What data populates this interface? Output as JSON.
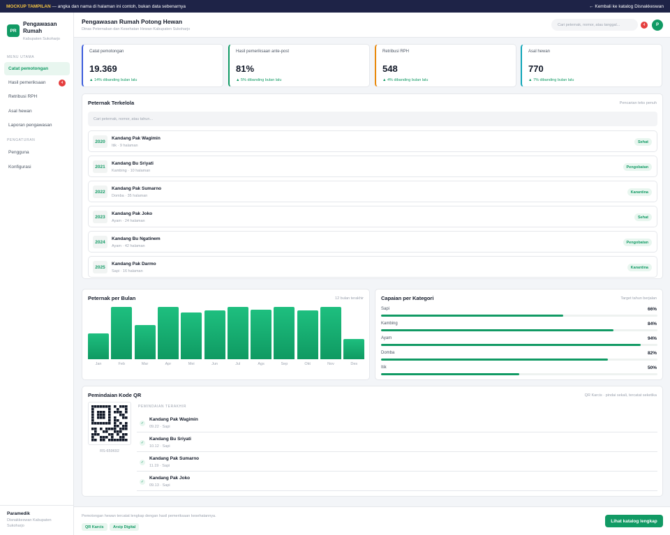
{
  "banner": {
    "tag": "MOCKUP TAMPILAN",
    "text": "— angka dan nama di halaman ini contoh, bukan data sebenarnya",
    "back_link": "← Kembali ke katalog Disnakkeswan"
  },
  "brand": {
    "logo": "PR",
    "title": "Pengawasan Rumah",
    "subtitle": "Kabupaten Sukoharjo"
  },
  "sidebar": {
    "section_main": "MENU UTAMA",
    "section_settings": "PENGATURAN",
    "items": [
      {
        "label": "Catat pemotongan"
      },
      {
        "label": "Hasil pemeriksaan",
        "badge": "4"
      },
      {
        "label": "Retribusi RPH"
      },
      {
        "label": "Asal hewan"
      },
      {
        "label": "Laporan pengawasan"
      }
    ],
    "settings": [
      {
        "label": "Pengguna"
      },
      {
        "label": "Konfigurasi"
      }
    ]
  },
  "user": {
    "name": "Paramedik",
    "role": "Disnakkeswan Kabupaten Sukoharjo"
  },
  "header": {
    "title": "Pengawasan Rumah Potong Hewan",
    "subtitle": "Dinas Peternakan dan Kesehatan Hewan Kabupaten Sukoharjo",
    "search_placeholder": "Cari peternak, nomor, atau tanggal...",
    "notif_count": "4",
    "avatar": "P"
  },
  "kpis": [
    {
      "label": "Catat pemotongan",
      "value": "19.369",
      "delta": "▲ 14% dibanding bulan lalu",
      "accent": "#3b5bdb"
    },
    {
      "label": "Hasil pemeriksaan ante-post",
      "value": "81%",
      "delta": "▲ 5% dibanding bulan lalu",
      "accent": "#119a64"
    },
    {
      "label": "Retribusi RPH",
      "value": "548",
      "delta": "▲ 4% dibanding bulan lalu",
      "accent": "#e8890c"
    },
    {
      "label": "Asal hewan",
      "value": "770",
      "delta": "▲ 7% dibanding bulan lalu",
      "accent": "#0ea5b7"
    }
  ],
  "farms": {
    "title": "Peternak Terkelola",
    "hint": "Pencarian teks penuh",
    "search_placeholder": "Cari peternak, nomor, atau tahun...",
    "rows": [
      {
        "year": "2020",
        "name": "Kandang Pak Wagimin",
        "meta": "Itik · 9 halaman",
        "status": "Sehat"
      },
      {
        "year": "2021",
        "name": "Kandang Bu Sriyati",
        "meta": "Kambing · 10 halaman",
        "status": "Pengobatan"
      },
      {
        "year": "2022",
        "name": "Kandang Pak Sumarno",
        "meta": "Domba · 35 halaman",
        "status": "Karantina"
      },
      {
        "year": "2023",
        "name": "Kandang Pak Joko",
        "meta": "Ayam · 24 halaman",
        "status": "Sehat"
      },
      {
        "year": "2024",
        "name": "Kandang Bu Ngatinem",
        "meta": "Ayam · 42 halaman",
        "status": "Pengobatan"
      },
      {
        "year": "2025",
        "name": "Kandang Pak Darmo",
        "meta": "Sapi · 16 halaman",
        "status": "Karantina"
      }
    ]
  },
  "monthly": {
    "title": "Peternak per Bulan",
    "hint": "12 bulan terakhir"
  },
  "chart_data": {
    "type": "bar",
    "categories": [
      "Jan",
      "Feb",
      "Mar",
      "Apr",
      "Mei",
      "Jun",
      "Jul",
      "Ags",
      "Sep",
      "Okt",
      "Nov",
      "Des"
    ],
    "values": [
      50,
      100,
      65,
      100,
      90,
      93,
      100,
      95,
      100,
      93,
      100,
      39
    ],
    "ylim": [
      0,
      100
    ]
  },
  "categories": {
    "title": "Capaian per Kategori",
    "hint": "Target tahun berjalan",
    "items": [
      {
        "label": "Sapi",
        "value": "66%",
        "pct": 66
      },
      {
        "label": "Kambing",
        "value": "84%",
        "pct": 84
      },
      {
        "label": "Ayam",
        "value": "94%",
        "pct": 94
      },
      {
        "label": "Domba",
        "value": "82%",
        "pct": 82
      },
      {
        "label": "Itik",
        "value": "50%",
        "pct": 50
      }
    ]
  },
  "qr": {
    "title": "Pemindaian Kode QR",
    "hint": "QR Karcis · pindai sekali, tercatat seketika",
    "code": "RS-659692",
    "scan_heading": "PEMINDAIAN TERAKHIR",
    "scans": [
      {
        "name": "Kandang Pak Wagimin",
        "meta": "09.22 · Sapi"
      },
      {
        "name": "Kandang Bu Sriyati",
        "meta": "10.12 · Sapi"
      },
      {
        "name": "Kandang Pak Sumarno",
        "meta": "11.19 · Sapi"
      },
      {
        "name": "Kandang Pak Joko",
        "meta": "09.13 · Sapi"
      }
    ]
  },
  "footer": {
    "text": "Pemotongan hewan tercatat lengkap dengan hasil pemeriksaan kesehatannya.",
    "chips": [
      "QR Karcis",
      "Arsip Digital"
    ],
    "button": "Lihat katalog lengkap"
  }
}
